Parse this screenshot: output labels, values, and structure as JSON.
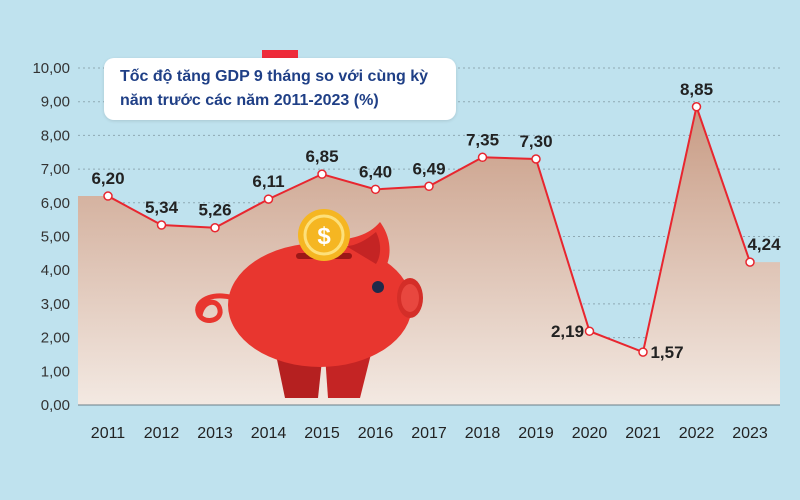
{
  "chart_data": {
    "type": "area",
    "title_lines": [
      "Tốc độ tăng GDP 9 tháng so với cùng kỳ",
      "năm trước các năm 2011-2023 (%)"
    ],
    "categories": [
      "2011",
      "2012",
      "2013",
      "2014",
      "2015",
      "2016",
      "2017",
      "2018",
      "2019",
      "2020",
      "2021",
      "2022",
      "2023"
    ],
    "values": [
      6.2,
      5.34,
      5.26,
      6.11,
      6.85,
      6.4,
      6.49,
      7.35,
      7.3,
      2.19,
      1.57,
      8.85,
      4.24
    ],
    "value_labels": [
      "6,20",
      "5,34",
      "5,26",
      "6,11",
      "6,85",
      "6,40",
      "6,49",
      "7,35",
      "7,30",
      "2,19",
      "1,57",
      "8,85",
      "4,24"
    ],
    "y_ticks": [
      "0,00",
      "1,00",
      "2,00",
      "3,00",
      "4,00",
      "5,00",
      "6,00",
      "7,00",
      "8,00",
      "9,00",
      "10,00"
    ],
    "ylim": [
      0,
      10
    ],
    "grid": true,
    "colors": {
      "background": "#bfe2ee",
      "line": "#e8262f",
      "area_top": "#c89b84",
      "area_bottom": "#f3e9e2",
      "grid": "#8fa9b3",
      "title_text": "#1f3f86",
      "label_text": "#222222",
      "pig_body": "#e8362f",
      "coin": "#f5b622"
    },
    "decoration": "piggy-bank-with-dollar-coin"
  }
}
